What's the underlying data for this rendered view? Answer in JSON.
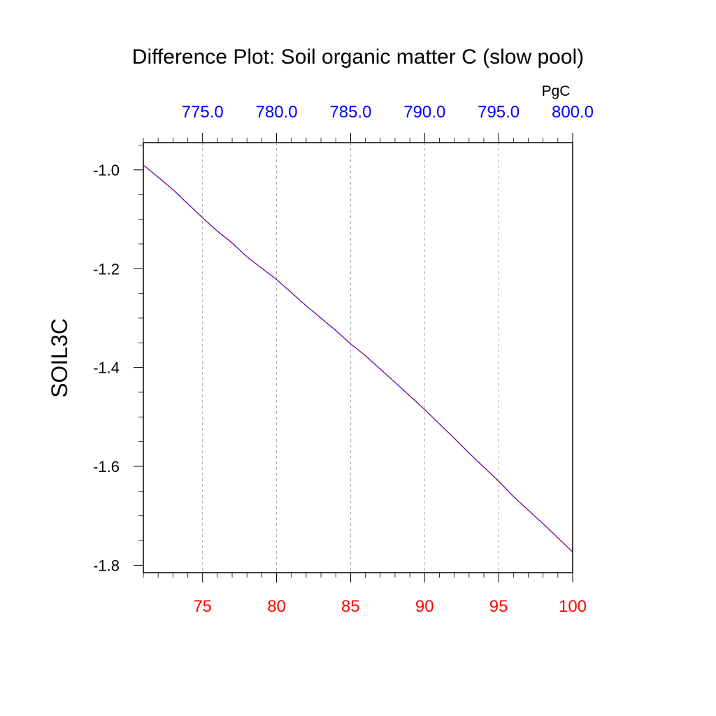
{
  "chart_data": {
    "type": "line",
    "title": "Difference Plot: Soil organic matter C (slow pool)",
    "ylabel": "SOIL3C",
    "top_axis_units": "PgC",
    "xlim": [
      71,
      100
    ],
    "ylim": [
      -1.815,
      -0.945
    ],
    "x_ticks": [
      75,
      80,
      85,
      90,
      95,
      100
    ],
    "x_tick_labels": [
      "75",
      "80",
      "85",
      "90",
      "95",
      "100"
    ],
    "x_minor_step": 1,
    "y_ticks": [
      -1.0,
      -1.2,
      -1.4,
      -1.6,
      -1.8
    ],
    "y_tick_labels": [
      "-1.0",
      "-1.2",
      "-1.4",
      "-1.6",
      "-1.8"
    ],
    "y_minor_step": 0.05,
    "top_ticks_at_x": [
      75,
      80,
      85,
      90,
      95,
      100
    ],
    "top_tick_labels": [
      "775.0",
      "780.0",
      "785.0",
      "790.0",
      "795.0",
      "800.0"
    ],
    "grid": "vertical dashed at major x ticks",
    "colors": {
      "bottom_axis": "#ff0000",
      "top_axis": "#0000ff",
      "series_line": "#0000ff",
      "series_dash": "#ff0000"
    },
    "series": [
      {
        "x": [
          71,
          73,
          75,
          76,
          77,
          78,
          80,
          82,
          84,
          85,
          86,
          88,
          90,
          92,
          93,
          95,
          96,
          98,
          100
        ],
        "y": [
          -0.99,
          -1.04,
          -1.097,
          -1.124,
          -1.148,
          -1.176,
          -1.222,
          -1.275,
          -1.325,
          -1.352,
          -1.376,
          -1.43,
          -1.485,
          -1.543,
          -1.573,
          -1.63,
          -1.661,
          -1.716,
          -1.773
        ]
      }
    ]
  }
}
